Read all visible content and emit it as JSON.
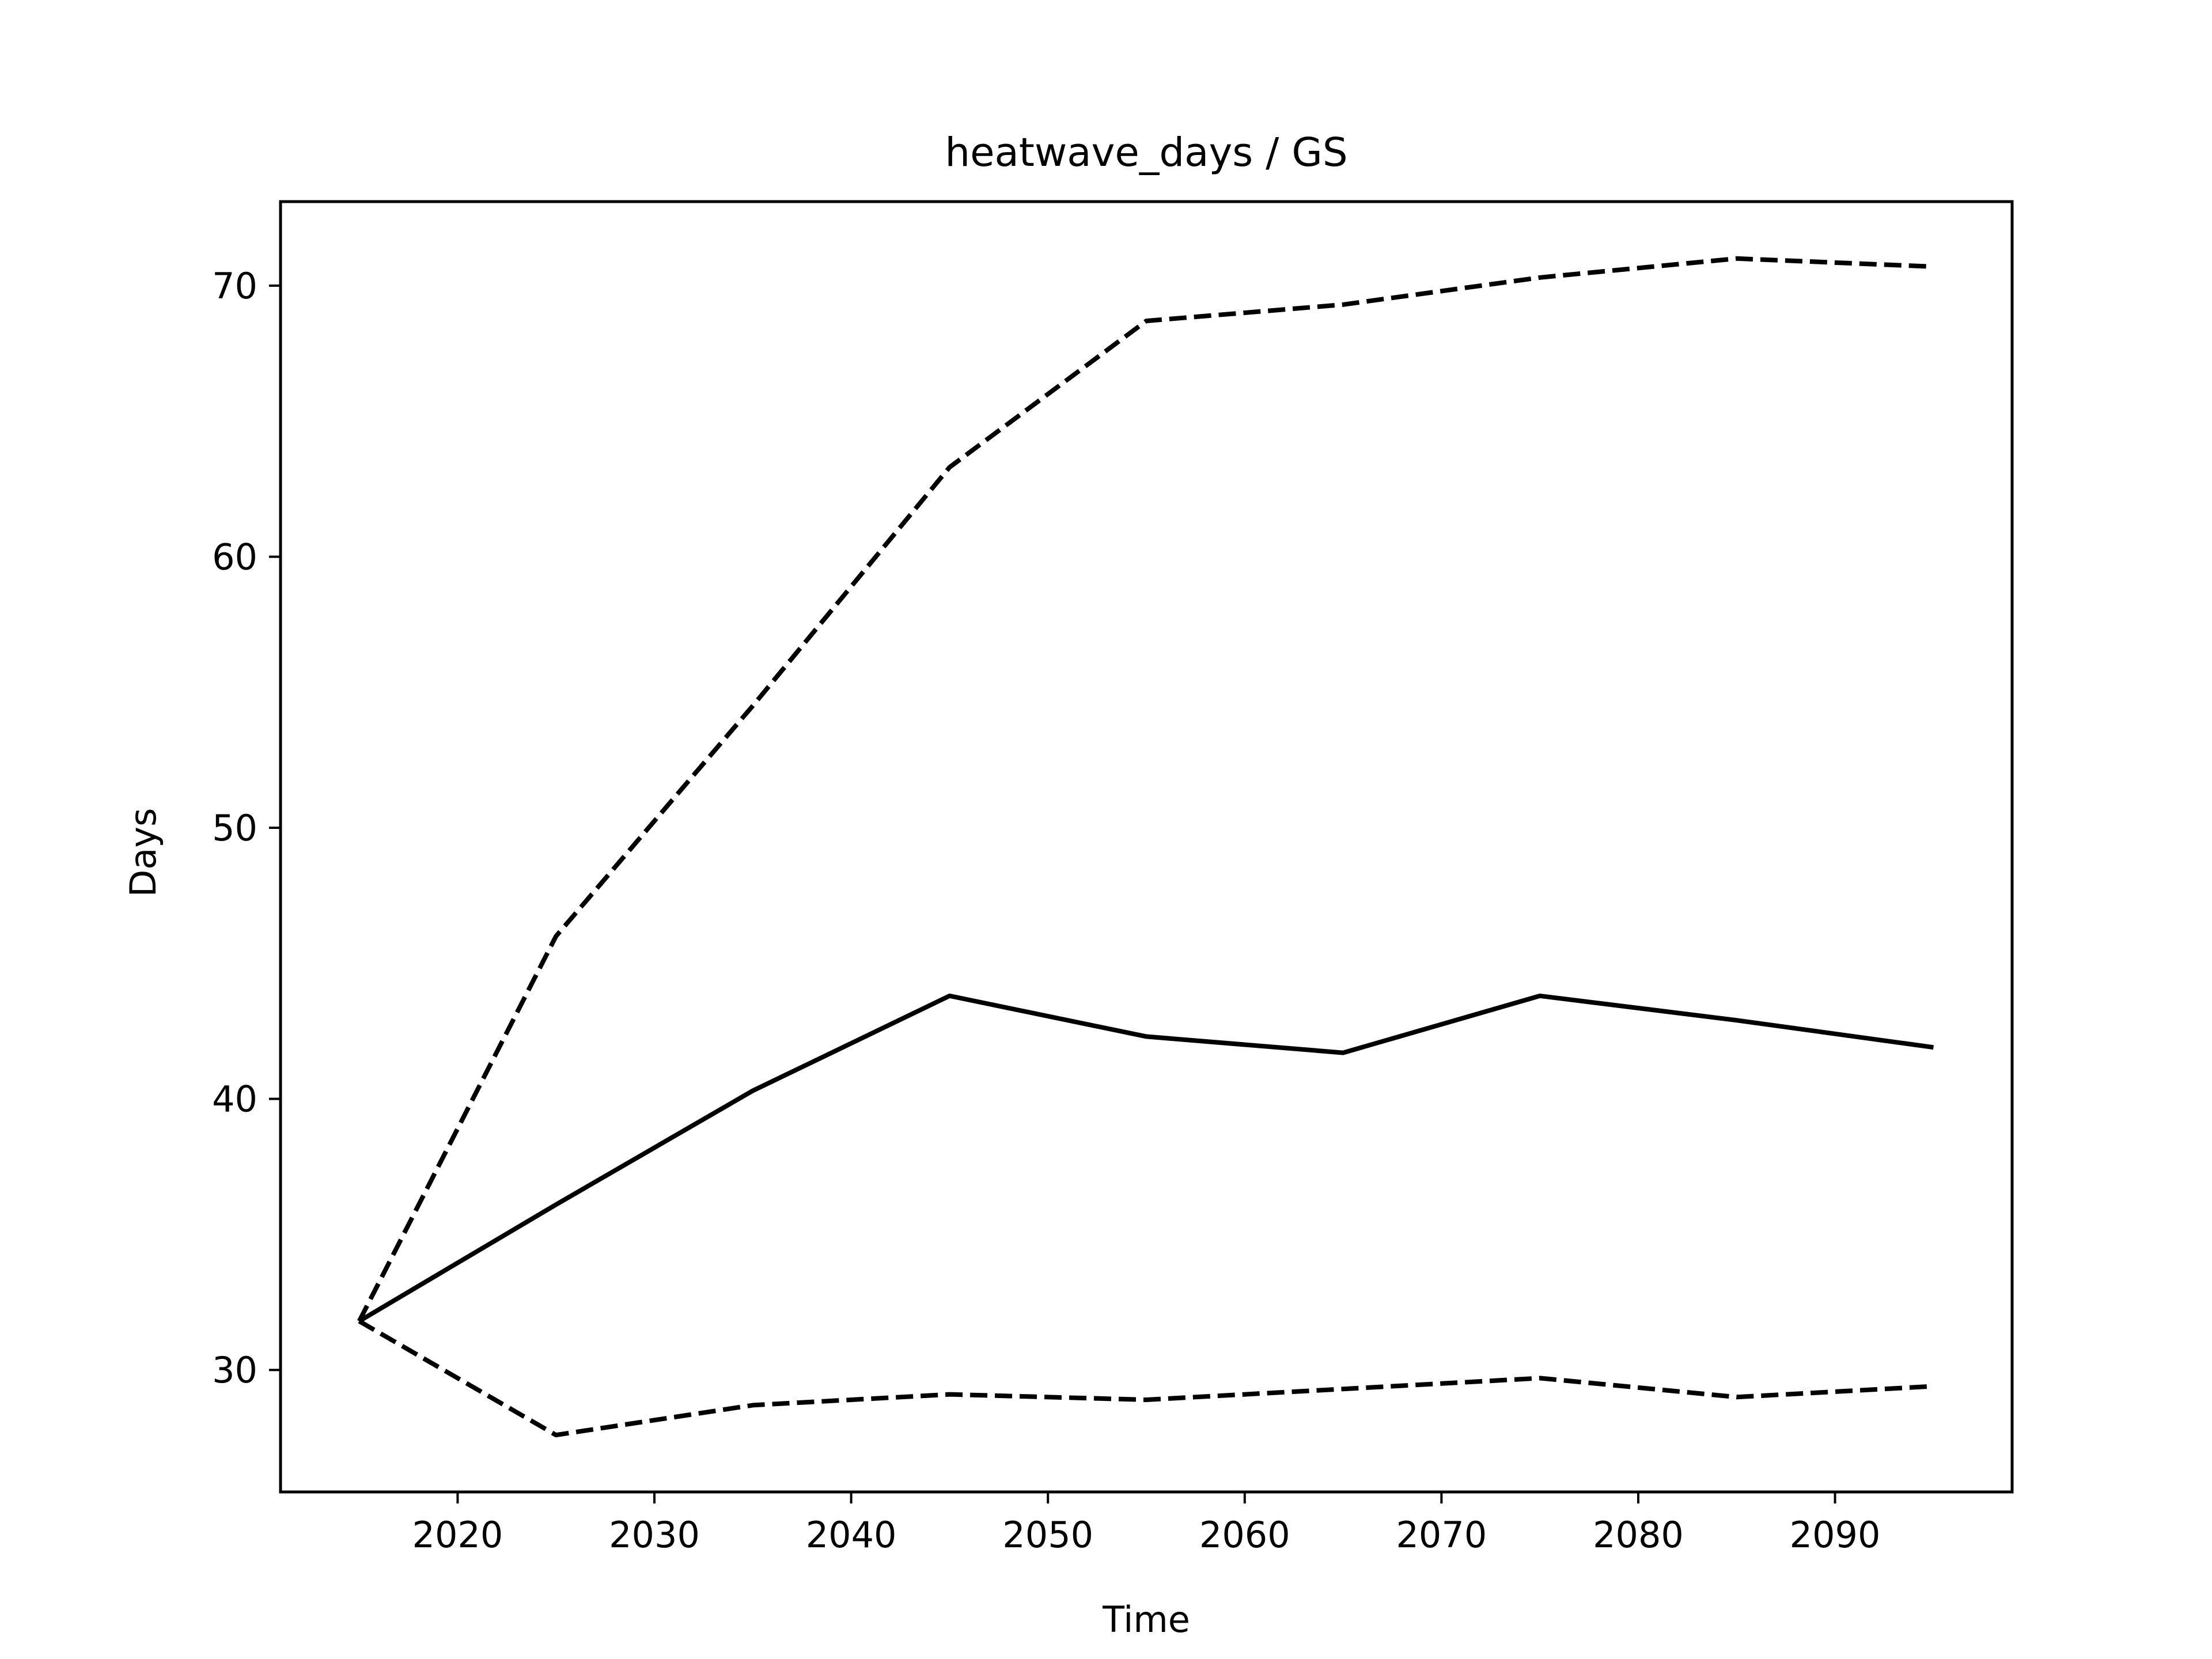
{
  "chart_data": {
    "type": "line",
    "title": "heatwave_days / GS",
    "xlabel": "Time",
    "ylabel": "Days",
    "xlim": [
      2011,
      2099
    ],
    "ylim": [
      25.5,
      73.1
    ],
    "xticks": [
      2020,
      2030,
      2040,
      2050,
      2060,
      2070,
      2080,
      2090
    ],
    "yticks": [
      30,
      40,
      50,
      60,
      70
    ],
    "grid": false,
    "legend": false,
    "x": [
      2015,
      2025,
      2035,
      2045,
      2055,
      2065,
      2075,
      2085,
      2095
    ],
    "series": [
      {
        "style": "solid",
        "color": "#000000",
        "values": [
          31.8,
          36.1,
          40.3,
          43.8,
          42.3,
          41.7,
          43.8,
          42.9,
          41.9
        ]
      },
      {
        "style": "dashed",
        "color": "#000000",
        "values": [
          31.8,
          46.0,
          54.5,
          63.3,
          68.7,
          69.3,
          70.3,
          71.0,
          70.7
        ]
      },
      {
        "style": "dashed",
        "color": "#000000",
        "values": [
          31.8,
          27.6,
          28.7,
          29.1,
          28.9,
          29.3,
          29.7,
          29.0,
          29.4
        ]
      }
    ]
  }
}
